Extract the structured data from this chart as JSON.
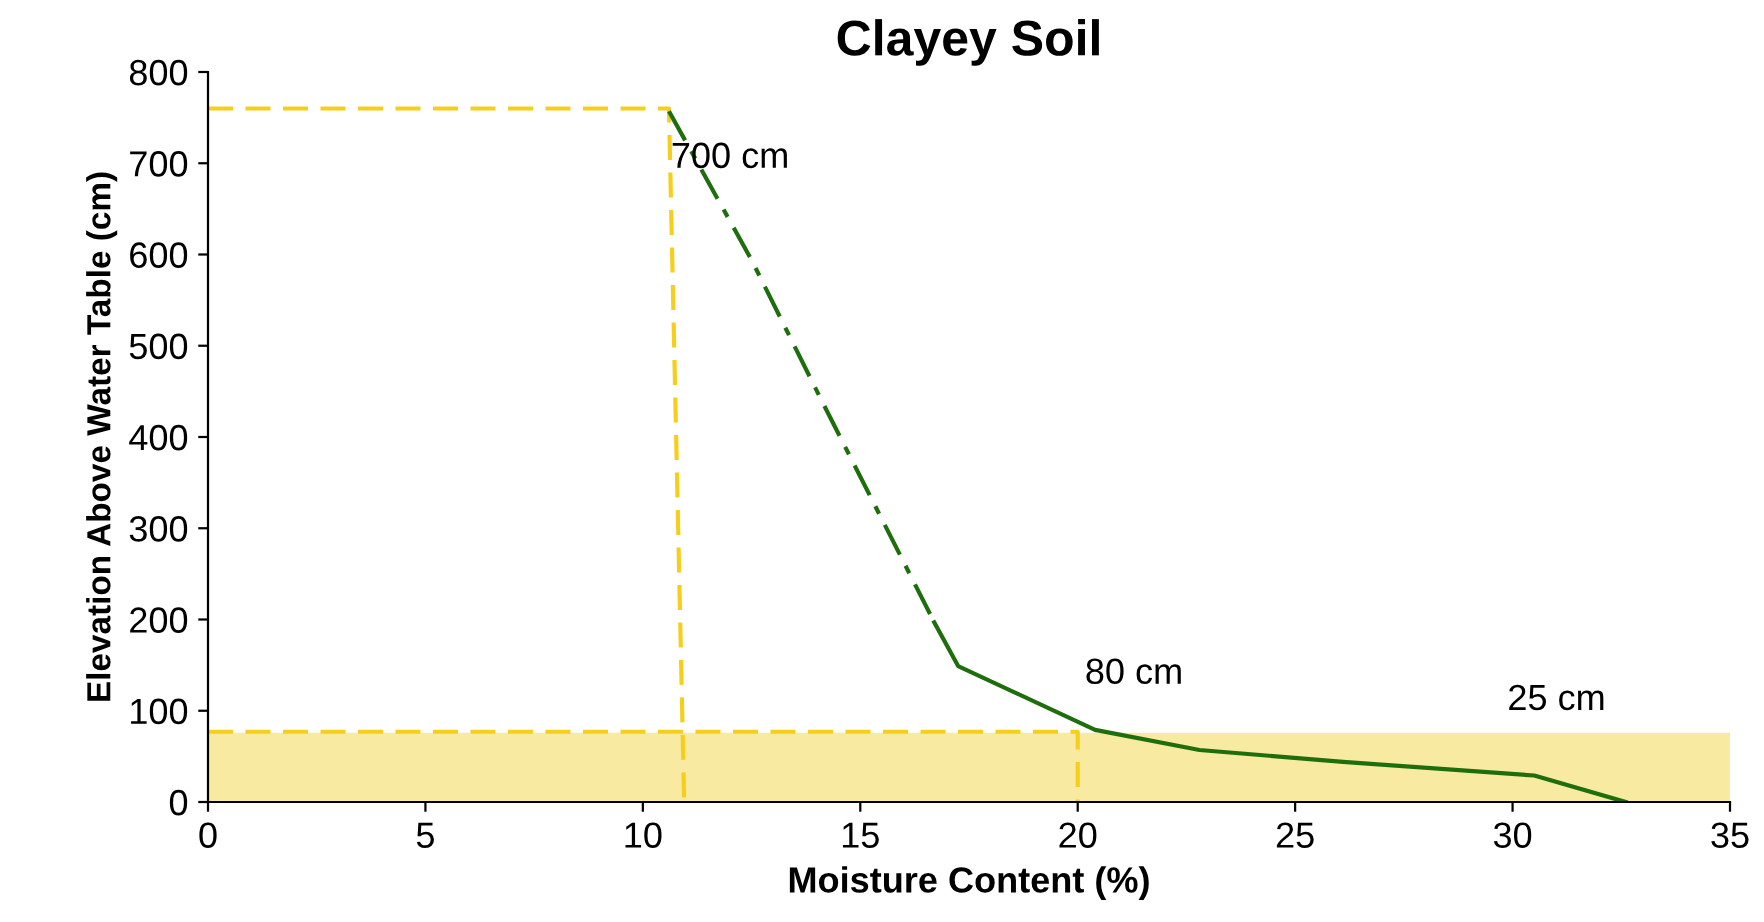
{
  "chart_data": {
    "type": "line",
    "title": "Clayey Soil",
    "xlabel": "Moisture Content (%)",
    "ylabel": "Elevation Above Water Table (cm)",
    "xlim": [
      0,
      35
    ],
    "ylim": [
      0,
      800
    ],
    "xticks": [
      0,
      5,
      10,
      15,
      20,
      25,
      30,
      35
    ],
    "yticks": [
      0,
      100,
      200,
      300,
      400,
      500,
      600,
      700,
      800
    ],
    "grid": false,
    "legend": false,
    "marker": "none",
    "bands": [
      {
        "axis": "y",
        "from": 0,
        "to": 76,
        "color": "#f8eaa0"
      }
    ],
    "series": [
      {
        "color": "#f5cf1c",
        "line_style": "dashed",
        "x": [
          0,
          10.6,
          10.95
        ],
        "values": [
          760,
          760,
          0
        ]
      },
      {
        "color": "#f5cf1c",
        "line_style": "dashed",
        "x": [
          0,
          20,
          20
        ],
        "values": [
          77,
          77,
          0
        ]
      },
      {
        "color": "#1e6e0e",
        "line_style": "solid",
        "x": [
          16.7,
          17.25,
          20.4,
          22.8,
          26.1,
          30.5,
          32.6
        ],
        "values": [
          197,
          149,
          79,
          57,
          44,
          29,
          0
        ]
      },
      {
        "color": "#1e6e0e",
        "line_style": "dashdot",
        "x": [
          10.6,
          12.5,
          14.1,
          16.7
        ],
        "values": [
          757,
          594,
          441,
          197
        ]
      }
    ],
    "annotations": [
      {
        "text": "700 cm",
        "x": 10.6,
        "y": 757
      },
      {
        "text": "80 cm",
        "x": 20.4,
        "y": 79
      },
      {
        "text": "25 cm",
        "x": 30.5,
        "y": 29
      }
    ]
  }
}
